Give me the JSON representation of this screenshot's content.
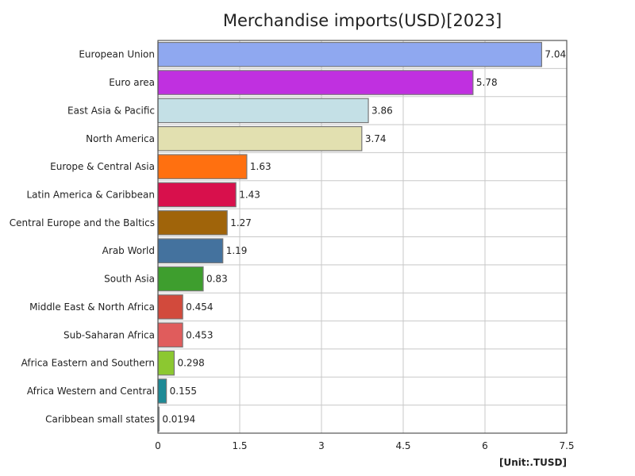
{
  "chart_data": {
    "type": "bar",
    "orientation": "horizontal",
    "title": "Merchandise imports(USD)[2023]",
    "unit_label": "[Unit:.TUSD]",
    "xlim": [
      0,
      7.5
    ],
    "xticks": [
      "0",
      "1.5",
      "3",
      "4.5",
      "6",
      "7.5"
    ],
    "grid": true,
    "categories": [
      "European Union",
      "Euro area",
      "East Asia & Pacific",
      "North America",
      "Europe & Central Asia",
      "Latin America & Caribbean",
      "Central Europe and the Baltics",
      "Arab World",
      "South Asia",
      "Middle East & North Africa",
      "Sub-Saharan Africa",
      "Africa Eastern and Southern",
      "Africa Western and Central",
      "Caribbean small states"
    ],
    "values": [
      7.04,
      5.78,
      3.86,
      3.74,
      1.63,
      1.43,
      1.27,
      1.19,
      0.83,
      0.454,
      0.453,
      0.298,
      0.155,
      0.0194
    ],
    "value_labels": [
      "7.04",
      "5.78",
      "3.86",
      "3.74",
      "1.63",
      "1.43",
      "1.27",
      "1.19",
      "0.83",
      "0.454",
      "0.453",
      "0.298",
      "0.155",
      "0.0194"
    ],
    "colors": [
      "#8fa8f0",
      "#c030e0",
      "#c4e0e6",
      "#e2e0b0",
      "#ff7010",
      "#d8104c",
      "#a0640a",
      "#44729e",
      "#3e9e2e",
      "#d24a3c",
      "#e05c5c",
      "#8cc830",
      "#1e8a96",
      "#a6d8ea"
    ]
  }
}
